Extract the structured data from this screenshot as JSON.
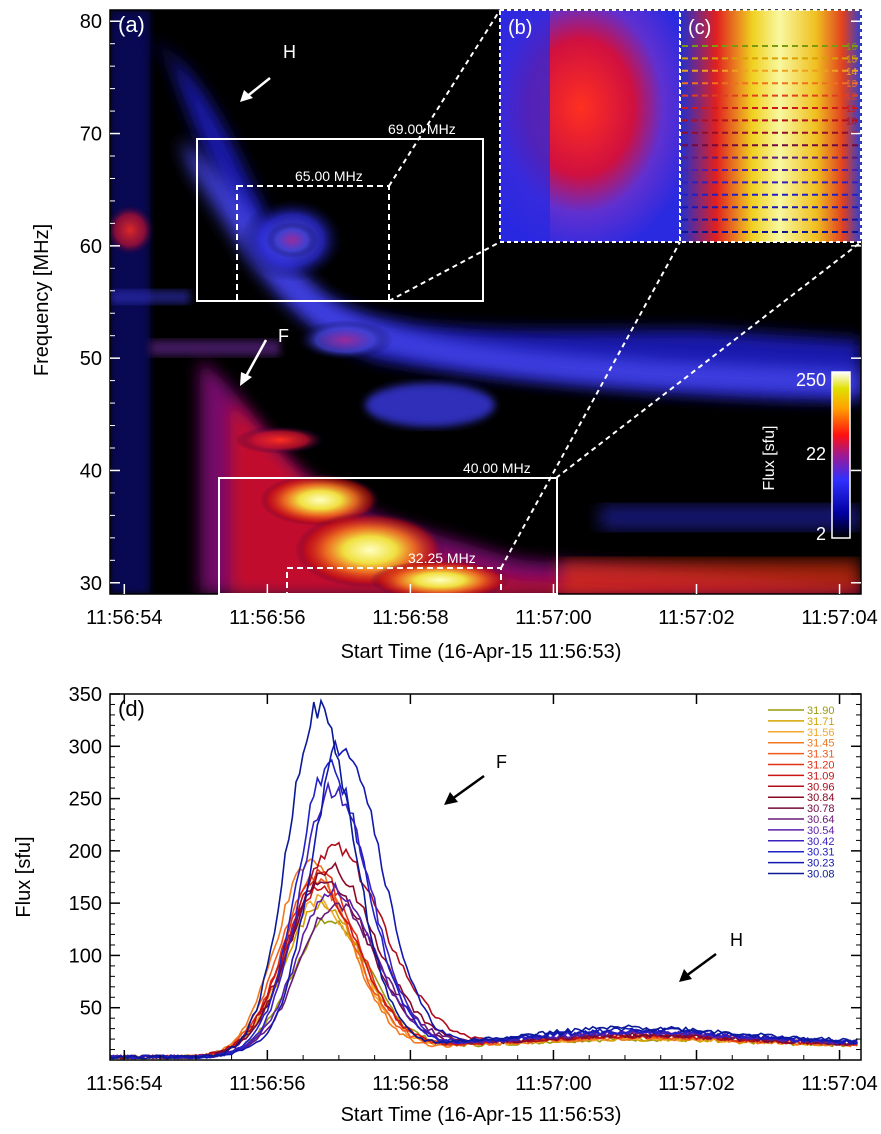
{
  "panel_a": {
    "label": "(a)",
    "ylabel": "Frequency [MHz]",
    "xlabel": "Start Time (16-Apr-15 11:56:53)",
    "yticks": [
      "30",
      "40",
      "50",
      "60",
      "70",
      "80"
    ],
    "xticks": [
      "11:56:54",
      "11:56:56",
      "11:56:58",
      "11:57:00",
      "11:57:02",
      "11:57:04"
    ],
    "arrow_h": "H",
    "arrow_f": "F",
    "box_labels": [
      "69.00 MHz",
      "65.00 MHz",
      "40.00 MHz",
      "32.25 MHz"
    ],
    "inset_b_label": "(b)",
    "inset_c_label": "(c)",
    "inset_c_line_labels": [
      "16",
      "15",
      "14",
      "13",
      "12",
      "11",
      "10"
    ],
    "colorbar": {
      "title": "Flux [sfu]",
      "ticks": [
        "250",
        "22",
        "2"
      ]
    }
  },
  "panel_d": {
    "label": "(d)",
    "ylabel": "Flux [sfu]",
    "xlabel": "Start Time (16-Apr-15 11:56:53)",
    "yticks": [
      "50",
      "100",
      "150",
      "200",
      "250",
      "300",
      "350"
    ],
    "xticks": [
      "11:56:54",
      "11:56:56",
      "11:56:58",
      "11:57:00",
      "11:57:02",
      "11:57:04"
    ],
    "arrow_f": "F",
    "arrow_h": "H"
  },
  "chart_data": [
    {
      "type": "heatmap",
      "panel": "(a)",
      "xlabel": "Start Time (16-Apr-15 11:56:53)",
      "ylabel": "Frequency [MHz]",
      "x_range_seconds_after_11_56_53": [
        0.8,
        11.3
      ],
      "ylim": [
        29,
        81
      ],
      "colorbar": {
        "label": "Flux [sfu]",
        "scale": "log",
        "range": [
          2,
          250
        ]
      },
      "boxes": [
        {
          "label": "69.00 MHz",
          "freq_range": [
            55,
            69
          ],
          "time_range": [
            "11:56:55.2",
            "11:56:59.1"
          ],
          "style": "solid"
        },
        {
          "label": "65.00 MHz",
          "freq_range": [
            55,
            65
          ],
          "time_range": [
            "11:56:55.7",
            "11:56:57.8"
          ],
          "style": "dashed"
        },
        {
          "label": "40.00 MHz",
          "freq_range": [
            29,
            40
          ],
          "time_range": [
            "11:56:55.5",
            "11:57:00.2"
          ],
          "style": "solid"
        },
        {
          "label": "32.25 MHz",
          "freq_range": [
            29,
            32.25
          ],
          "time_range": [
            "11:56:56.5",
            "11:56:59.5"
          ],
          "style": "dashed"
        }
      ],
      "annotations": [
        "H",
        "F"
      ],
      "features": [
        {
          "name": "F",
          "description_freq_MHz": [
            30,
            52
          ],
          "peak_time": "11:56:58"
        },
        {
          "name": "H",
          "description_freq_MHz": [
            55,
            72
          ],
          "peak_time": "11:56:57"
        }
      ]
    },
    {
      "type": "line",
      "panel": "(d)",
      "xlabel": "Start Time (16-Apr-15 11:56:53)",
      "ylabel": "Flux [sfu]",
      "xlim_seconds": [
        0.8,
        11.3
      ],
      "ylim": [
        0,
        350
      ],
      "annotations": [
        "F",
        "H"
      ],
      "series": [
        {
          "name": "31.90",
          "color": "#9a9a10",
          "peak_t": 3.85,
          "peak": 130,
          "width": 0.5,
          "delay": 0.22,
          "pedestal": 11,
          "hump": 6,
          "base_start": 3
        },
        {
          "name": "31.71",
          "color": "#d4a200",
          "peak_t": 3.75,
          "peak": 145,
          "width": 0.5,
          "delay": 0.23,
          "pedestal": 11,
          "hump": 6,
          "base_start": 3
        },
        {
          "name": "31.56",
          "color": "#f0a830",
          "peak_t": 3.7,
          "peak": 150,
          "width": 0.48,
          "delay": 0.24,
          "pedestal": 11,
          "hump": 7,
          "base_start": 3
        },
        {
          "name": "31.45",
          "color": "#f07a20",
          "peak_t": 3.6,
          "peak": 185,
          "width": 0.46,
          "delay": 0.25,
          "pedestal": 11,
          "hump": 7,
          "base_start": 3
        },
        {
          "name": "31.31",
          "color": "#ee5a20",
          "peak_t": 3.65,
          "peak": 170,
          "width": 0.47,
          "delay": 0.26,
          "pedestal": 12,
          "hump": 7,
          "base_start": 3
        },
        {
          "name": "31.20",
          "color": "#e23015",
          "peak_t": 3.7,
          "peak": 175,
          "width": 0.47,
          "delay": 0.27,
          "pedestal": 12,
          "hump": 8,
          "base_start": 3
        },
        {
          "name": "31.09",
          "color": "#cc1515",
          "peak_t": 3.7,
          "peak": 160,
          "width": 0.48,
          "delay": 0.28,
          "pedestal": 12,
          "hump": 8,
          "base_start": 3
        },
        {
          "name": "30.96",
          "color": "#b00e1c",
          "peak_t": 3.9,
          "peak": 200,
          "width": 0.55,
          "delay": 0.35,
          "pedestal": 12,
          "hump": 8,
          "base_start": 3
        },
        {
          "name": "30.84",
          "color": "#8a0a24",
          "peak_t": 3.85,
          "peak": 180,
          "width": 0.52,
          "delay": 0.32,
          "pedestal": 12,
          "hump": 9,
          "base_start": 3
        },
        {
          "name": "30.78",
          "color": "#720a3e",
          "peak_t": 3.8,
          "peak": 170,
          "width": 0.5,
          "delay": 0.3,
          "pedestal": 12,
          "hump": 9,
          "base_start": 3
        },
        {
          "name": "30.64",
          "color": "#6a1a78",
          "peak_t": 3.95,
          "peak": 145,
          "width": 0.5,
          "delay": 0.28,
          "pedestal": 13,
          "hump": 10,
          "base_start": 3
        },
        {
          "name": "30.54",
          "color": "#5a1ea8",
          "peak_t": 3.9,
          "peak": 160,
          "width": 0.48,
          "delay": 0.27,
          "pedestal": 13,
          "hump": 10,
          "base_start": 3
        },
        {
          "name": "30.42",
          "color": "#3a22c0",
          "peak_t": 3.9,
          "peak": 255,
          "width": 0.45,
          "delay": 0.26,
          "pedestal": 13,
          "hump": 11,
          "base_start": 3
        },
        {
          "name": "30.31",
          "color": "#2020c8",
          "peak_t": 3.85,
          "peak": 275,
          "width": 0.44,
          "delay": 0.26,
          "pedestal": 13,
          "hump": 12,
          "base_start": 3
        },
        {
          "name": "30.23",
          "color": "#1218b0",
          "peak_t": 4.05,
          "peak": 300,
          "width": 0.45,
          "delay": 0.25,
          "pedestal": 13,
          "hump": 13,
          "base_start": 3
        },
        {
          "name": "30.08",
          "color": "#0a1a96",
          "peak_t": 3.7,
          "peak": 332,
          "width": 0.42,
          "delay": 0.24,
          "pedestal": 14,
          "hump": 14,
          "base_start": 3
        }
      ]
    }
  ]
}
